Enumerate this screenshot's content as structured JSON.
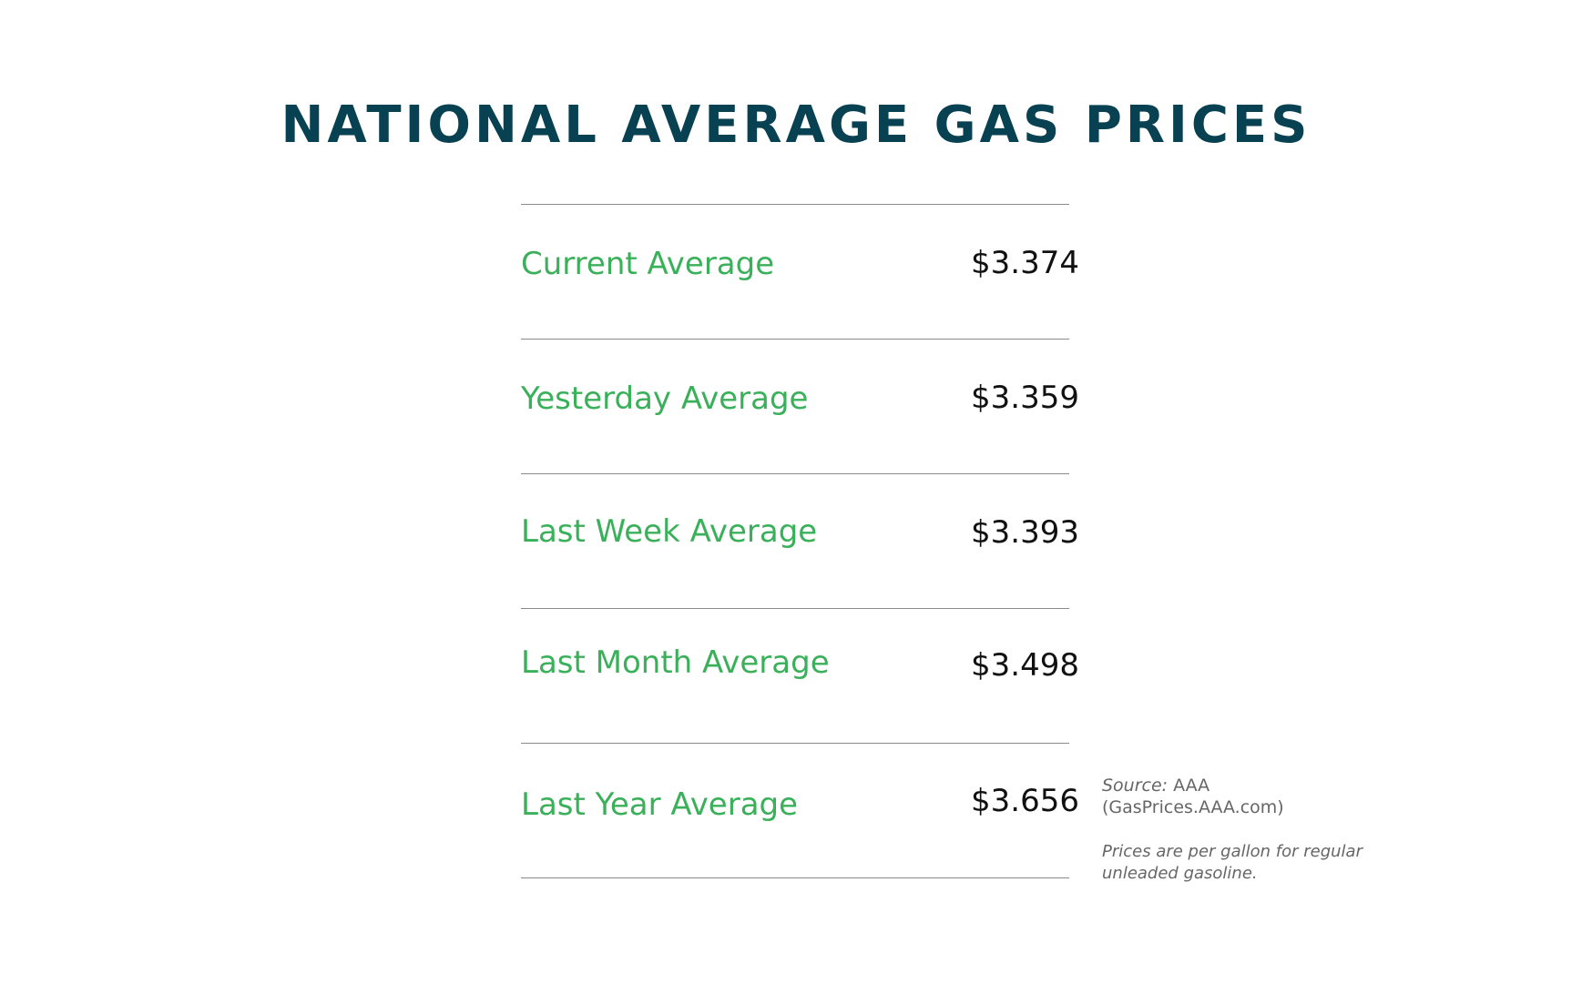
{
  "chart_data": {
    "type": "table",
    "title": "NATIONAL AVERAGE GAS PRICES",
    "rows": [
      {
        "label": "Current Average",
        "value": "$3.374"
      },
      {
        "label": "Yesterday Average",
        "value": "$3.359"
      },
      {
        "label": "Last Week Average",
        "value": "$3.393"
      },
      {
        "label": "Last Month Average",
        "value": "$3.498"
      },
      {
        "label": "Last Year Average",
        "value": "$3.656"
      }
    ],
    "values": [
      3.374,
      3.359,
      3.393,
      3.498,
      3.656
    ]
  },
  "source": {
    "prefix": "Source:",
    "name": "AAA",
    "site": "(GasPrices.AAA.com)"
  },
  "note": "Prices are per gallon for regular unleaded gasoline.",
  "colors": {
    "title": "#074152",
    "label": "#3ab05a",
    "value": "#111111",
    "rule": "#8a8a8a",
    "footnote": "#666666"
  }
}
